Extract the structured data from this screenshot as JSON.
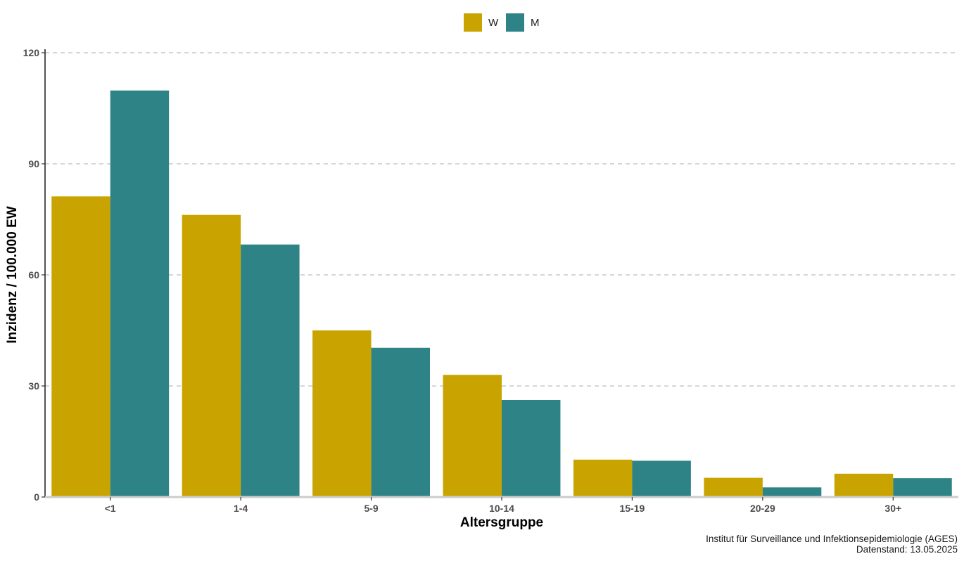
{
  "chart_data": {
    "type": "bar",
    "categories": [
      "<1",
      "1-4",
      "5-9",
      "10-14",
      "15-19",
      "20-29",
      "30+"
    ],
    "series": [
      {
        "name": "W",
        "color": "#C9A400",
        "values": [
          81.2,
          76.2,
          45.0,
          33.0,
          10.1,
          5.2,
          6.3
        ]
      },
      {
        "name": "M",
        "color": "#2E8387",
        "values": [
          109.8,
          68.2,
          40.3,
          26.2,
          9.8,
          2.6,
          5.1
        ]
      }
    ],
    "xlabel": "Altersgruppe",
    "ylabel": "Inzidenz / 100.000 EW",
    "ylim": [
      0,
      120
    ],
    "yticks": [
      0,
      30,
      60,
      90,
      120
    ],
    "grid": "horizontal dashed",
    "legend_position": "top-center"
  },
  "caption": {
    "line1": "Institut für Surveillance und Infektionsepidemiologie (AGES)",
    "line2": "Datenstand: 13.05.2025"
  }
}
